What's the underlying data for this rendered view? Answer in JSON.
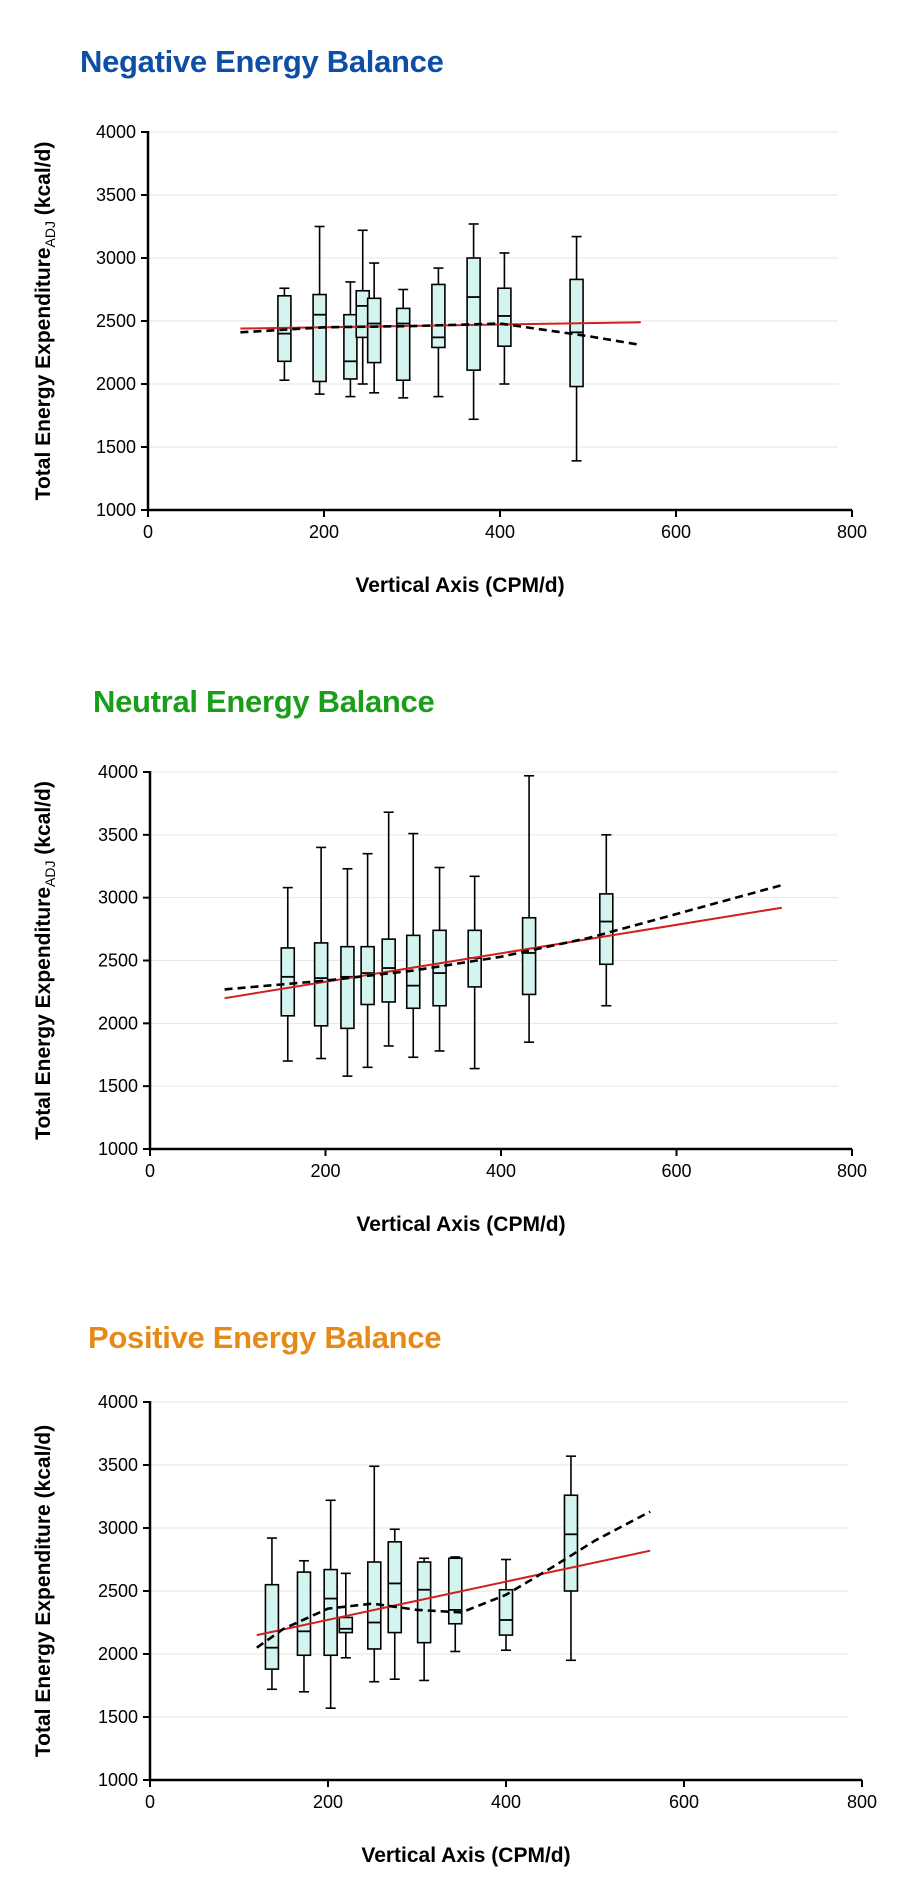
{
  "colors": {
    "box_fill": "#d4f4f0",
    "linear_fit": "#d21f1f",
    "curve_fit": "#000000",
    "grid": "#e6e6e6"
  },
  "chart_data": [
    {
      "type": "box",
      "title": "Negative Energy Balance",
      "title_color": "#0d4ea6",
      "xlabel": "Vertical Axis (CPM/d)",
      "ylabel": "Total Energy Expenditure",
      "ylabel_sub": "ADJ",
      "ylabel_unit": "(kcal/d)",
      "xlim": [
        0,
        800
      ],
      "ylim": [
        1000,
        4000
      ],
      "xticks": [
        "0",
        "200",
        "400",
        "600",
        "800"
      ],
      "yticks": [
        "1000",
        "1500",
        "2000",
        "2500",
        "3000",
        "3500",
        "4000"
      ],
      "boxes": [
        {
          "x": 155,
          "min": 2030,
          "q1": 2180,
          "median": 2400,
          "q3": 2700,
          "max": 2760
        },
        {
          "x": 195,
          "min": 1920,
          "q1": 2020,
          "median": 2550,
          "q3": 2710,
          "max": 3250
        },
        {
          "x": 230,
          "min": 1900,
          "q1": 2040,
          "median": 2180,
          "q3": 2550,
          "max": 2810
        },
        {
          "x": 244,
          "min": 2000,
          "q1": 2370,
          "median": 2620,
          "q3": 2740,
          "max": 3220
        },
        {
          "x": 257,
          "min": 1930,
          "q1": 2170,
          "median": 2480,
          "q3": 2680,
          "max": 2960
        },
        {
          "x": 290,
          "min": 1890,
          "q1": 2030,
          "median": 2480,
          "q3": 2600,
          "max": 2750
        },
        {
          "x": 330,
          "min": 1900,
          "q1": 2290,
          "median": 2370,
          "q3": 2790,
          "max": 2920
        },
        {
          "x": 370,
          "min": 1720,
          "q1": 2110,
          "median": 2690,
          "q3": 3000,
          "max": 3270
        },
        {
          "x": 405,
          "min": 2000,
          "q1": 2300,
          "median": 2540,
          "q3": 2760,
          "max": 3040
        },
        {
          "x": 487,
          "min": 1390,
          "q1": 1980,
          "median": 2410,
          "q3": 2830,
          "max": 3170
        }
      ],
      "linear_fit": {
        "x": [
          105,
          560
        ],
        "y": [
          2440,
          2490
        ]
      },
      "curve_fit": {
        "x": [
          105,
          200,
          300,
          400,
          450,
          500,
          560
        ],
        "y": [
          2410,
          2450,
          2460,
          2480,
          2430,
          2380,
          2310
        ]
      }
    },
    {
      "type": "box",
      "title": "Neutral Energy Balance",
      "title_color": "#1a9e1a",
      "xlabel": "Vertical Axis (CPM/d)",
      "ylabel": "Total Energy Expenditure",
      "ylabel_sub": "ADJ",
      "ylabel_unit": "(kcal/d)",
      "xlim": [
        0,
        800
      ],
      "ylim": [
        1000,
        4000
      ],
      "xticks": [
        "0",
        "200",
        "400",
        "600",
        "800"
      ],
      "yticks": [
        "1000",
        "1500",
        "2000",
        "2500",
        "3000",
        "3500",
        "4000"
      ],
      "boxes": [
        {
          "x": 157,
          "min": 1700,
          "q1": 2060,
          "median": 2370,
          "q3": 2600,
          "max": 3080
        },
        {
          "x": 195,
          "min": 1720,
          "q1": 1980,
          "median": 2360,
          "q3": 2640,
          "max": 3400
        },
        {
          "x": 225,
          "min": 1580,
          "q1": 1960,
          "median": 2370,
          "q3": 2610,
          "max": 3230
        },
        {
          "x": 248,
          "min": 1650,
          "q1": 2150,
          "median": 2400,
          "q3": 2610,
          "max": 3350
        },
        {
          "x": 272,
          "min": 1820,
          "q1": 2170,
          "median": 2440,
          "q3": 2670,
          "max": 3680
        },
        {
          "x": 300,
          "min": 1730,
          "q1": 2120,
          "median": 2300,
          "q3": 2700,
          "max": 3510
        },
        {
          "x": 330,
          "min": 1780,
          "q1": 2140,
          "median": 2400,
          "q3": 2740,
          "max": 3240
        },
        {
          "x": 370,
          "min": 1640,
          "q1": 2290,
          "median": 2520,
          "q3": 2740,
          "max": 3170
        },
        {
          "x": 432,
          "min": 1850,
          "q1": 2230,
          "median": 2560,
          "q3": 2840,
          "max": 3970
        },
        {
          "x": 520,
          "min": 2140,
          "q1": 2470,
          "median": 2810,
          "q3": 3030,
          "max": 3500
        }
      ],
      "linear_fit": {
        "x": [
          85,
          720
        ],
        "y": [
          2200,
          2920
        ]
      },
      "curve_fit": {
        "x": [
          85,
          200,
          300,
          400,
          500,
          600,
          720
        ],
        "y": [
          2270,
          2340,
          2420,
          2530,
          2680,
          2870,
          3100
        ]
      }
    },
    {
      "type": "box",
      "title": "Positive Energy Balance",
      "title_color": "#e68a17",
      "xlabel": "Vertical Axis (CPM/d)",
      "ylabel": "Total Energy Expenditure",
      "ylabel_sub": "",
      "ylabel_unit": "(kcal/d)",
      "xlim": [
        0,
        800
      ],
      "ylim": [
        1000,
        4000
      ],
      "xticks": [
        "0",
        "200",
        "400",
        "600",
        "800"
      ],
      "yticks": [
        "1000",
        "1500",
        "2000",
        "2500",
        "3000",
        "3500",
        "4000"
      ],
      "boxes": [
        {
          "x": 137,
          "min": 1720,
          "q1": 1880,
          "median": 2050,
          "q3": 2550,
          "max": 2920
        },
        {
          "x": 173,
          "min": 1700,
          "q1": 1990,
          "median": 2180,
          "q3": 2650,
          "max": 2740
        },
        {
          "x": 203,
          "min": 1570,
          "q1": 1990,
          "median": 2440,
          "q3": 2670,
          "max": 3220
        },
        {
          "x": 220,
          "min": 1970,
          "q1": 2170,
          "median": 2200,
          "q3": 2290,
          "max": 2640
        },
        {
          "x": 252,
          "min": 1780,
          "q1": 2040,
          "median": 2250,
          "q3": 2730,
          "max": 3490
        },
        {
          "x": 275,
          "min": 1800,
          "q1": 2170,
          "median": 2560,
          "q3": 2890,
          "max": 2990
        },
        {
          "x": 308,
          "min": 1790,
          "q1": 2090,
          "median": 2510,
          "q3": 2730,
          "max": 2760
        },
        {
          "x": 343,
          "min": 2020,
          "q1": 2240,
          "median": 2350,
          "q3": 2760,
          "max": 2770
        },
        {
          "x": 400,
          "min": 2030,
          "q1": 2150,
          "median": 2270,
          "q3": 2510,
          "max": 2750
        },
        {
          "x": 473,
          "min": 1950,
          "q1": 2500,
          "median": 2950,
          "q3": 3260,
          "max": 3570
        }
      ],
      "linear_fit": {
        "x": [
          120,
          562
        ],
        "y": [
          2150,
          2820
        ]
      },
      "curve_fit": {
        "x": [
          120,
          150,
          200,
          250,
          300,
          350,
          400,
          450,
          500,
          562
        ],
        "y": [
          2050,
          2200,
          2360,
          2400,
          2350,
          2330,
          2470,
          2680,
          2900,
          3130
        ]
      }
    }
  ]
}
